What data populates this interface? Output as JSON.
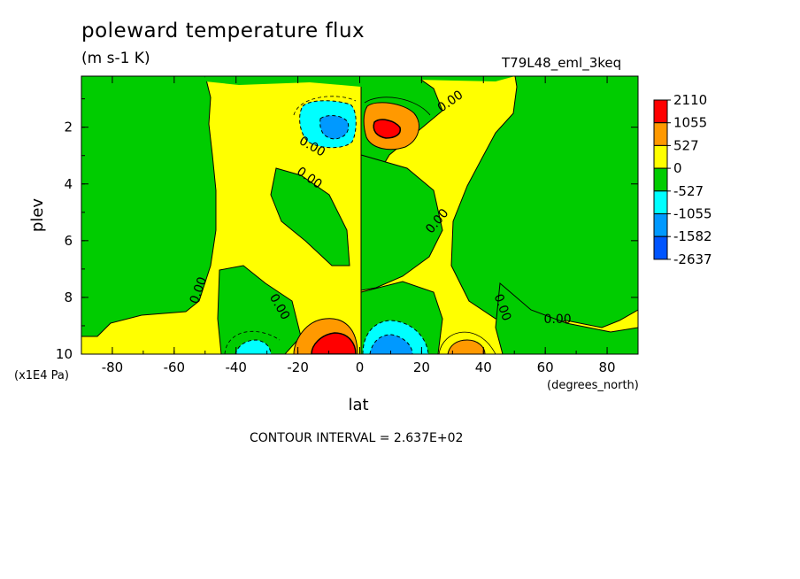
{
  "chart_data": {
    "type": "heatmap",
    "title": "poleward temperature flux",
    "units": "(m s-1 K)",
    "dataset": "T79L48_eml_3keq",
    "xlabel": "lat",
    "xunits": "(degrees_north)",
    "ylabel": "plev",
    "yunits": "(x1E4 Pa)",
    "xlim": [
      -90,
      90
    ],
    "ylim": [
      10,
      0.2
    ],
    "xticks": [
      "-80",
      "-60",
      "-40",
      "-20",
      "0",
      "20",
      "40",
      "60",
      "80"
    ],
    "yticks": [
      "2",
      "4",
      "6",
      "8",
      "10"
    ],
    "contour_interval": "CONTOUR INTERVAL = 2.637E+02",
    "contour_labels": [
      "0.00",
      "0.00",
      "0.00",
      "0.00",
      "0.00",
      "0.00",
      "0.00",
      "0.00",
      "0.00",
      "0.00"
    ],
    "colorbar": {
      "labels": [
        "2110",
        "1055",
        "527",
        "0",
        "-527",
        "-1055",
        "-1582",
        "-2637"
      ],
      "colors": [
        "#ff0000",
        "#ff9900",
        "#ffff00",
        "#00cc00",
        "#00ffff",
        "#0099ff",
        "#0055ff"
      ]
    },
    "features": [
      {
        "lat": -8,
        "plev": 9.7,
        "sign": "positive",
        "peak": 2110
      },
      {
        "lat": 8,
        "plev": 2.0,
        "sign": "positive",
        "peak": 2110
      },
      {
        "lat": 8,
        "plev": 9.5,
        "sign": "negative",
        "peak": -1582
      },
      {
        "lat": -10,
        "plev": 2.0,
        "sign": "negative",
        "peak": -1582
      },
      {
        "lat": -36,
        "plev": 9.7,
        "sign": "negative",
        "peak": -1055
      },
      {
        "lat": 35,
        "plev": 9.8,
        "sign": "positive",
        "peak": 1055
      }
    ]
  }
}
